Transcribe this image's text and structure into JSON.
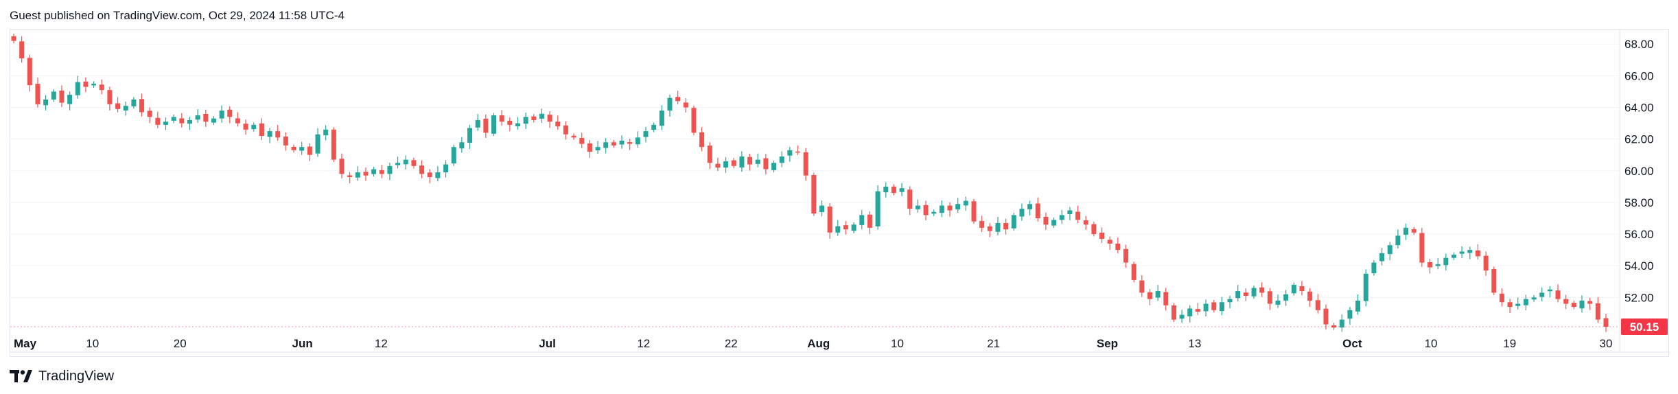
{
  "header": {
    "text": "Guest published on TradingView.com, Oct 29, 2024 11:58 UTC-4"
  },
  "footer": {
    "brand": "TradingView",
    "logo_icon": "tradingview-logo-icon"
  },
  "colors": {
    "up": "#26a69a",
    "down": "#ef5350",
    "grid": "#f0f3fa",
    "axis_text": "#131722",
    "last_price_bg": "#f23645",
    "last_price_text": "#ffffff",
    "border": "#e0e3eb"
  },
  "chart_data": {
    "type": "candlestick",
    "title": "",
    "xlabel": "",
    "ylabel": "",
    "y_range": [
      49.5,
      68.4
    ],
    "y_ticks": [
      "68.00",
      "66.00",
      "64.00",
      "62.00",
      "60.00",
      "58.00",
      "56.00",
      "54.00",
      "52.00"
    ],
    "y_tick_values": [
      68,
      66,
      64,
      62,
      60,
      58,
      56,
      54,
      52
    ],
    "x_labels": [
      "May",
      "10",
      "20",
      "Jun",
      "12",
      "Jul",
      "12",
      "22",
      "Aug",
      "10",
      "21",
      "Sep",
      "13",
      "Oct",
      "10",
      "19",
      "30"
    ],
    "x_label_dates": [
      "2024-05-01",
      "2024-05-10",
      "2024-05-20",
      "2024-06-03",
      "2024-06-12",
      "2024-07-01",
      "2024-07-12",
      "2024-07-22",
      "2024-08-01",
      "2024-08-10",
      "2024-08-21",
      "2024-09-03",
      "2024-09-13",
      "2024-10-01",
      "2024-10-10",
      "2024-10-19",
      "2024-10-30"
    ],
    "last_price": "50.15",
    "grid": true,
    "series": [
      {
        "closes": [
          68.2,
          67.1,
          65.4,
          64.2,
          64.5,
          65.0,
          64.3,
          64.8,
          65.6,
          65.3,
          65.5,
          65.1,
          64.2,
          63.9,
          64.1,
          64.5,
          63.7,
          63.4,
          62.9,
          63.1,
          63.4,
          63.0,
          63.2,
          63.5,
          63.1,
          63.3,
          63.8,
          63.4,
          63.0,
          62.6,
          62.9,
          62.2,
          62.5,
          62.1,
          61.6,
          61.3,
          61.5,
          61.0,
          62.3,
          62.6,
          60.7,
          59.8,
          59.6,
          59.9,
          59.7,
          60.1,
          59.8,
          60.3,
          60.5,
          60.7,
          60.3,
          59.8,
          59.6,
          59.9,
          60.4,
          61.5,
          61.8,
          62.7,
          63.2,
          62.4,
          63.5,
          63.1,
          62.9,
          63.0,
          63.4,
          63.2,
          63.6,
          63.1,
          62.8,
          62.3,
          62.1,
          61.7,
          61.2,
          61.5,
          61.8,
          61.6,
          61.9,
          61.7,
          62.1,
          62.5,
          62.9,
          63.8,
          64.6,
          64.4,
          64.0,
          62.4,
          61.5,
          60.5,
          60.2,
          60.6,
          60.3,
          60.9,
          60.4,
          60.7,
          60.1,
          60.5,
          60.9,
          61.3,
          61.2,
          59.7,
          57.3,
          57.8,
          56.1,
          56.5,
          56.3,
          56.6,
          57.2,
          56.4,
          58.7,
          59.0,
          58.6,
          58.9,
          57.6,
          57.8,
          57.2,
          57.4,
          57.8,
          57.5,
          57.9,
          58.1,
          56.8,
          56.4,
          56.2,
          56.7,
          56.3,
          57.2,
          57.6,
          57.9,
          57.0,
          56.6,
          56.9,
          57.2,
          57.5,
          56.9,
          56.6,
          56.0,
          55.7,
          55.4,
          55.0,
          54.2,
          53.1,
          52.3,
          51.9,
          52.4,
          51.5,
          50.6,
          50.9,
          51.3,
          51.1,
          51.6,
          51.2,
          51.7,
          51.9,
          52.4,
          52.1,
          52.6,
          52.3,
          51.6,
          51.8,
          52.2,
          52.8,
          52.4,
          51.8,
          51.2,
          50.3,
          50.1,
          50.6,
          51.2,
          51.8,
          53.5,
          54.2,
          54.8,
          55.3,
          55.9,
          56.4,
          56.1,
          54.2,
          53.9,
          54.1,
          54.5,
          54.7,
          54.9,
          55.0,
          54.6,
          53.7,
          52.3,
          51.7,
          51.4,
          51.6,
          51.9,
          52.0,
          52.3,
          52.5,
          51.9,
          51.6,
          51.4,
          51.8,
          51.6,
          50.6,
          50.15
        ]
      }
    ]
  }
}
